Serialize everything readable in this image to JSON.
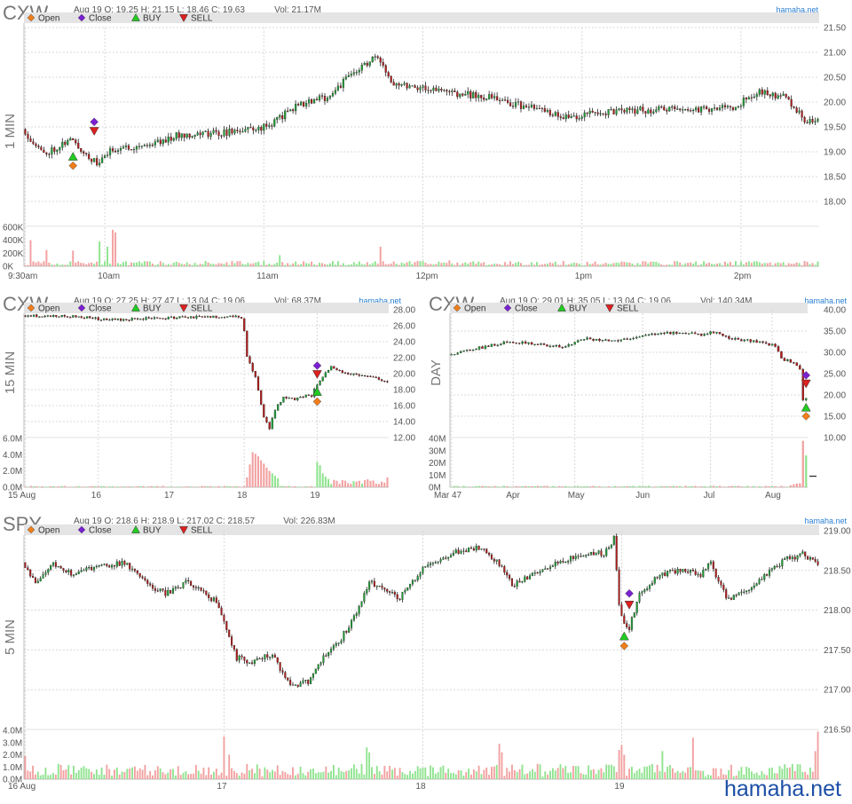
{
  "site": {
    "brand": "hamaha.net",
    "watermark": "hamaha.net"
  },
  "legend": {
    "open": "Open",
    "close": "Close",
    "buy": "BUY",
    "sell": "SELL"
  },
  "colors": {
    "up": "#1e9e35",
    "down": "#b01c1c",
    "vol_up": "#8fe38f",
    "vol_down": "#f2a0a0",
    "open_marker": "#f07d1a",
    "close_marker": "#7a1fd1",
    "buy_marker": "#22cc22",
    "sell_marker": "#dd2020",
    "legend_bar": "#e4e4e4",
    "grid": "#d8d8d8"
  },
  "chart_data": [
    {
      "id": "cxw-1min",
      "type": "candlestick",
      "symbol": "CXW",
      "timeframe": "1 MIN",
      "ohlc_text": "Aug 19 O: 19.25 H: 21.15 L: 18.46 C: 19.63",
      "vol_text": "Vol: 21.17M",
      "ylim": [
        17.5,
        21.5
      ],
      "y_ticks": [
        "21.50",
        "21.00",
        "20.50",
        "20.00",
        "19.50",
        "19.00",
        "18.50",
        "18.00"
      ],
      "y_tick_values": [
        21.5,
        21.0,
        20.5,
        20.0,
        19.5,
        19.0,
        18.5,
        18.0
      ],
      "x_ticks": [
        {
          "label": "9:30am",
          "i": 0
        },
        {
          "label": "10am",
          "i": 30
        },
        {
          "label": "11am",
          "i": 90
        },
        {
          "label": "12pm",
          "i": 150
        },
        {
          "label": "1pm",
          "i": 210
        },
        {
          "label": "2pm",
          "i": 270
        }
      ],
      "n": 300,
      "anchors": [
        [
          0,
          19.45
        ],
        [
          8,
          18.95
        ],
        [
          18,
          19.25
        ],
        [
          28,
          18.75
        ],
        [
          34,
          19.05
        ],
        [
          48,
          19.15
        ],
        [
          60,
          19.35
        ],
        [
          75,
          19.38
        ],
        [
          92,
          19.5
        ],
        [
          104,
          19.95
        ],
        [
          115,
          20.1
        ],
        [
          124,
          20.55
        ],
        [
          133,
          20.9
        ],
        [
          140,
          20.4
        ],
        [
          150,
          20.3
        ],
        [
          160,
          20.2
        ],
        [
          175,
          20.1
        ],
        [
          190,
          19.9
        ],
        [
          205,
          19.7
        ],
        [
          220,
          19.8
        ],
        [
          240,
          19.85
        ],
        [
          256,
          19.85
        ],
        [
          268,
          19.9
        ],
        [
          278,
          20.2
        ],
        [
          288,
          20.1
        ],
        [
          296,
          19.6
        ],
        [
          300,
          19.65
        ]
      ],
      "seed": 11,
      "noise": 0.07,
      "vol_ylim": [
        0,
        600000
      ],
      "vol_ticks": [
        "600K",
        "400K",
        "200K",
        "0K"
      ],
      "vol_tick_values": [
        600000,
        400000,
        200000,
        0
      ],
      "vol_base": 45000,
      "vol_spikes": [
        [
          2,
          400000
        ],
        [
          8,
          250000
        ],
        [
          18,
          240000
        ],
        [
          28,
          380000
        ],
        [
          33,
          560000
        ],
        [
          34,
          520000
        ],
        [
          31,
          300000
        ],
        [
          96,
          170000
        ],
        [
          134,
          300000
        ],
        [
          160,
          90000
        ]
      ],
      "markers": [
        {
          "kind": "open",
          "i": 18,
          "price": 18.72
        },
        {
          "kind": "buy",
          "i": 18,
          "price": 18.9
        },
        {
          "kind": "close",
          "i": 26,
          "price": 19.6
        },
        {
          "kind": "sell",
          "i": 26,
          "price": 19.42
        }
      ]
    },
    {
      "id": "cxw-15min",
      "type": "candlestick",
      "symbol": "CXW",
      "timeframe": "15 MIN",
      "ohlc_text": "Aug 19 O: 27.25 H: 27.47 L: 13.04 C: 19.06",
      "vol_text": "Vol: 68.37M",
      "ylim": [
        12.0,
        28.0
      ],
      "y_ticks": [
        "28.00",
        "26.00",
        "24.00",
        "22.00",
        "20.00",
        "18.00",
        "16.00",
        "14.00",
        "12.00"
      ],
      "y_tick_values": [
        28,
        26,
        24,
        22,
        20,
        18,
        16,
        14,
        12
      ],
      "x_ticks": [
        {
          "label": "15 Aug",
          "i": 0
        },
        {
          "label": "16",
          "i": 26
        },
        {
          "label": "17",
          "i": 52
        },
        {
          "label": "18",
          "i": 78
        },
        {
          "label": "19",
          "i": 104
        }
      ],
      "n": 130,
      "anchors": [
        [
          0,
          27.25
        ],
        [
          20,
          27.15
        ],
        [
          30,
          26.7
        ],
        [
          45,
          26.9
        ],
        [
          60,
          27.05
        ],
        [
          76,
          27.2
        ],
        [
          78,
          27.0
        ],
        [
          79,
          25.2
        ],
        [
          80,
          22.0
        ],
        [
          83,
          19.5
        ],
        [
          86,
          14.5
        ],
        [
          88,
          13.2
        ],
        [
          90,
          15.5
        ],
        [
          93,
          17.0
        ],
        [
          97,
          16.8
        ],
        [
          101,
          17.3
        ],
        [
          103,
          17.0
        ],
        [
          104,
          18.2
        ],
        [
          106,
          19.2
        ],
        [
          110,
          20.8
        ],
        [
          116,
          20.0
        ],
        [
          124,
          19.6
        ],
        [
          130,
          19.06
        ]
      ],
      "seed": 23,
      "noise": 0.15,
      "vol_ylim": [
        0,
        6000000
      ],
      "vol_ticks": [
        "6.0M",
        "4.0M",
        "2.0M",
        "0.0M"
      ],
      "vol_tick_values": [
        6000000,
        4000000,
        2000000,
        0
      ],
      "vol_base": 90000,
      "vol_spikes": [
        [
          79,
          1200000
        ],
        [
          80,
          2800000
        ],
        [
          81,
          4300000
        ],
        [
          82,
          4100000
        ],
        [
          83,
          3800000
        ],
        [
          84,
          3300000
        ],
        [
          85,
          2900000
        ],
        [
          86,
          2400000
        ],
        [
          87,
          2000000
        ],
        [
          88,
          1700000
        ],
        [
          89,
          1400000
        ],
        [
          90,
          1100000
        ],
        [
          104,
          3100000
        ],
        [
          105,
          2700000
        ],
        [
          106,
          1700000
        ],
        [
          107,
          1300000
        ],
        [
          108,
          1000000
        ],
        [
          110,
          900000
        ],
        [
          129,
          1200000
        ]
      ],
      "vol_tail_from": 104,
      "vol_tail_level": 750000,
      "markers": [
        {
          "kind": "open",
          "i": 104,
          "price": 16.5
        },
        {
          "kind": "buy",
          "i": 104,
          "price": 17.7
        },
        {
          "kind": "close",
          "i": 104,
          "price": 21.0
        },
        {
          "kind": "sell",
          "i": 104,
          "price": 19.95
        }
      ]
    },
    {
      "id": "cxw-day",
      "type": "candlestick",
      "symbol": "CXW",
      "timeframe": "DAY",
      "ohlc_text": "Aug 19 O: 29.01 H: 35.05 L: 13.04 C: 19.06",
      "vol_text": "Vol: 140.34M",
      "ylim": [
        10.0,
        40.0
      ],
      "y_ticks": [
        "40.00",
        "35.00",
        "30.00",
        "25.00",
        "20.00",
        "15.00",
        "10.00"
      ],
      "y_tick_values": [
        40,
        35,
        30,
        25,
        20,
        15,
        10
      ],
      "x_ticks": [
        {
          "label": "Mar 47",
          "i": 0
        },
        {
          "label": "Apr",
          "i": 20
        },
        {
          "label": "May",
          "i": 40
        },
        {
          "label": "Jun",
          "i": 62
        },
        {
          "label": "Jul",
          "i": 84
        },
        {
          "label": "Aug",
          "i": 104
        }
      ],
      "n": 116,
      "anchors": [
        [
          0,
          29.5
        ],
        [
          10,
          31.0
        ],
        [
          20,
          32.5
        ],
        [
          30,
          31.8
        ],
        [
          38,
          31.2
        ],
        [
          44,
          33.3
        ],
        [
          54,
          32.5
        ],
        [
          64,
          34.2
        ],
        [
          76,
          34.6
        ],
        [
          82,
          34.2
        ],
        [
          86,
          34.8
        ],
        [
          92,
          33.2
        ],
        [
          100,
          32.5
        ],
        [
          106,
          31.5
        ],
        [
          108,
          28.5
        ],
        [
          112,
          27.5
        ],
        [
          114,
          26.0
        ],
        [
          115,
          19.06
        ]
      ],
      "seed": 37,
      "noise": 0.3,
      "last_long": true,
      "vol_ylim": [
        0,
        40000000
      ],
      "vol_ticks": [
        "40M",
        "30M",
        "20M",
        "10M",
        "0M"
      ],
      "vol_tick_values": [
        40000000,
        30000000,
        20000000,
        10000000,
        0
      ],
      "vol_base": 650000,
      "vol_spikes": [
        [
          110,
          1600000
        ],
        [
          111,
          2400000
        ],
        [
          112,
          3000000
        ],
        [
          113,
          3200000
        ],
        [
          114,
          38000000
        ],
        [
          115,
          26000000
        ]
      ],
      "vol_avg_level": 9000000,
      "markers": [
        {
          "kind": "open",
          "i": 115,
          "price": 15.0
        },
        {
          "kind": "buy",
          "i": 115,
          "price": 17.0
        },
        {
          "kind": "close",
          "i": 115,
          "price": 24.6
        },
        {
          "kind": "sell",
          "i": 115,
          "price": 22.7
        }
      ]
    },
    {
      "id": "spy-5min",
      "type": "candlestick",
      "symbol": "SPY",
      "timeframe": "5 MIN",
      "ohlc_text": "Aug 19 O: 218.6 H: 218.9 L: 217.02 C: 218.57",
      "vol_text": "Vol: 226.83M",
      "ylim": [
        216.5,
        219.0
      ],
      "y_ticks": [
        "219.00",
        "218.50",
        "218.00",
        "217.50",
        "217.00",
        "216.50"
      ],
      "y_tick_values": [
        219.0,
        218.5,
        218.0,
        217.5,
        217.0,
        216.5
      ],
      "x_ticks": [
        {
          "label": "16 Aug",
          "i": 0
        },
        {
          "label": "17",
          "i": 78
        },
        {
          "label": "18",
          "i": 156
        },
        {
          "label": "19",
          "i": 234
        }
      ],
      "n": 312,
      "anchors": [
        [
          0,
          218.6
        ],
        [
          5,
          218.35
        ],
        [
          12,
          218.6
        ],
        [
          20,
          218.45
        ],
        [
          30,
          218.55
        ],
        [
          40,
          218.6
        ],
        [
          48,
          218.35
        ],
        [
          56,
          218.2
        ],
        [
          64,
          218.35
        ],
        [
          72,
          218.2
        ],
        [
          76,
          218.1
        ],
        [
          80,
          217.75
        ],
        [
          84,
          217.4
        ],
        [
          90,
          217.35
        ],
        [
          98,
          217.45
        ],
        [
          102,
          217.2
        ],
        [
          106,
          217.05
        ],
        [
          112,
          217.1
        ],
        [
          118,
          217.4
        ],
        [
          124,
          217.6
        ],
        [
          130,
          217.9
        ],
        [
          136,
          218.35
        ],
        [
          142,
          218.25
        ],
        [
          148,
          218.15
        ],
        [
          156,
          218.5
        ],
        [
          164,
          218.65
        ],
        [
          172,
          218.75
        ],
        [
          180,
          218.8
        ],
        [
          188,
          218.55
        ],
        [
          192,
          218.3
        ],
        [
          200,
          218.45
        ],
        [
          210,
          218.6
        ],
        [
          220,
          218.7
        ],
        [
          228,
          218.72
        ],
        [
          232,
          218.9
        ],
        [
          234,
          218.05
        ],
        [
          236,
          217.85
        ],
        [
          238,
          217.78
        ],
        [
          242,
          218.2
        ],
        [
          250,
          218.45
        ],
        [
          258,
          218.5
        ],
        [
          266,
          218.45
        ],
        [
          270,
          218.6
        ],
        [
          276,
          218.15
        ],
        [
          282,
          218.2
        ],
        [
          290,
          218.4
        ],
        [
          300,
          218.65
        ],
        [
          306,
          218.7
        ],
        [
          312,
          218.57
        ]
      ],
      "seed": 53,
      "noise": 0.035,
      "vol_ylim": [
        0,
        4000000
      ],
      "vol_ticks": [
        "4.0M",
        "3.0M",
        "2.0M",
        "1.0M",
        "0.0M"
      ],
      "vol_tick_values": [
        4000000,
        3000000,
        2000000,
        1000000,
        0
      ],
      "vol_base": 700000,
      "vol_spikes": [
        [
          0,
          1900000
        ],
        [
          78,
          3500000
        ],
        [
          80,
          2000000
        ],
        [
          134,
          2600000
        ],
        [
          135,
          2200000
        ],
        [
          186,
          2900000
        ],
        [
          187,
          2200000
        ],
        [
          233,
          2400000
        ],
        [
          234,
          2800000
        ],
        [
          235,
          2000000
        ],
        [
          250,
          2300000
        ],
        [
          262,
          3400000
        ],
        [
          311,
          3900000
        ],
        [
          310,
          2300000
        ]
      ],
      "markers": [
        {
          "kind": "open",
          "i": 235,
          "price": 217.55
        },
        {
          "kind": "buy",
          "i": 235,
          "price": 217.67
        },
        {
          "kind": "close",
          "i": 237,
          "price": 218.21
        },
        {
          "kind": "sell",
          "i": 237,
          "price": 218.07
        }
      ]
    }
  ]
}
